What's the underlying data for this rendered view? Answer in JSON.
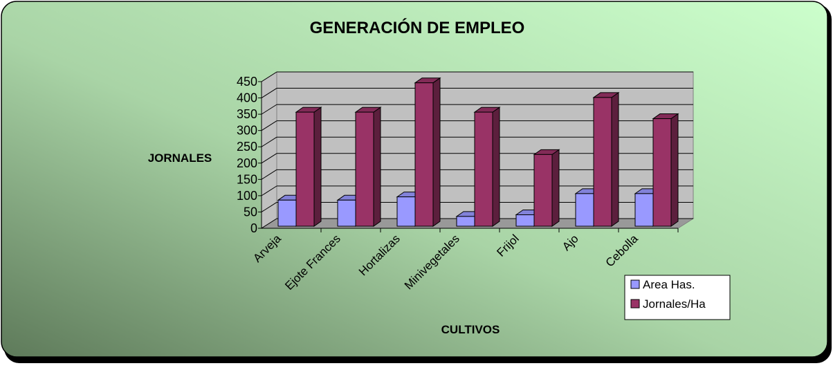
{
  "chart_data": {
    "type": "bar3d",
    "title": "GENERACIÓN DE EMPLEO",
    "y_label": "JORNALES",
    "x_label": "CULTIVOS",
    "categories": [
      "Arveja",
      "Ejote Frances",
      "Hortalizas",
      "Minivegetales",
      "Frijol",
      "Ajo",
      "Cebolla"
    ],
    "series": [
      {
        "name": "Area Has.",
        "color": "#9999ff",
        "values": [
          80,
          80,
          90,
          30,
          35,
          100,
          100
        ]
      },
      {
        "name": "Jornales/Ha",
        "color": "#993366",
        "values": [
          350,
          350,
          440,
          350,
          220,
          395,
          330
        ]
      }
    ],
    "ylim": [
      0,
      450
    ],
    "yticks": [
      0,
      50,
      100,
      150,
      200,
      250,
      300,
      350,
      400,
      450
    ],
    "grid": true,
    "legend": "lower right"
  }
}
